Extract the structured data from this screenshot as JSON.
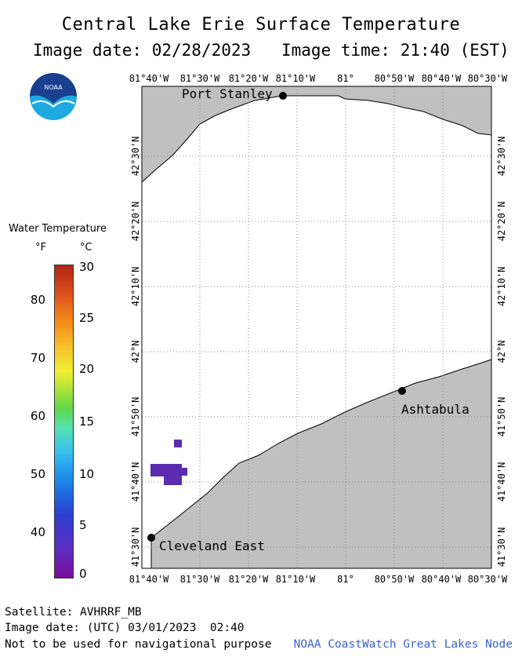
{
  "header": {
    "title": "Central Lake Erie Surface Temperature",
    "image_date": "Image date: 02/28/2023",
    "image_time": "Image time: 21:40 (EST)"
  },
  "logo": {
    "text": "NOAA",
    "icon": "noaa-logo"
  },
  "legend": {
    "title": "Water Temperature",
    "unit_f": "°F",
    "unit_c": "°C",
    "f_ticks": [
      "80",
      "70",
      "60",
      "50",
      "40"
    ],
    "c_ticks": [
      "30",
      "25",
      "20",
      "15",
      "10",
      "5",
      "0"
    ]
  },
  "map": {
    "lon_labels": [
      "81°40'W",
      "81°30'W",
      "81°20'W",
      "81°10'W",
      "81°",
      "80°50'W",
      "80°40'W",
      "80°30'W"
    ],
    "lat_labels": [
      "42°30'N",
      "42°20'N",
      "42°10'N",
      "42°N",
      "41°50'N",
      "41°40'N",
      "41°30'N"
    ],
    "cities": [
      {
        "name": "Port Stanley",
        "lon": -81.19,
        "lat": 42.67
      },
      {
        "name": "Ashtabula",
        "lon": -80.79,
        "lat": 41.88
      },
      {
        "name": "Cleveland East",
        "lon": -81.66,
        "lat": 41.53
      }
    ],
    "land_color": "#c0c0c0",
    "water_color": "#ffffff",
    "pixel_color": "#5b2cae"
  },
  "footer": {
    "satellite": "Satellite: AVHRRF_MB",
    "utc_date": "Image date: (UTC) 03/01/2023  02:40",
    "disclaimer": "Not to be used for navigational purpose",
    "credit": "NOAA CoastWatch Great Lakes Node"
  }
}
